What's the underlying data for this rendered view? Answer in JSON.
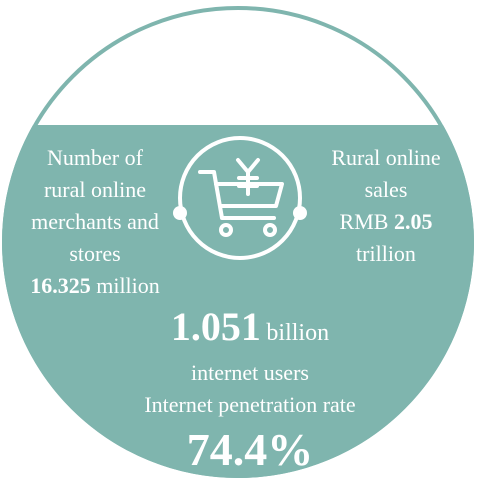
{
  "left": {
    "lines": [
      "Number of",
      "rural online",
      "merchants and",
      "stores"
    ],
    "value": "16.325",
    "unit": "million"
  },
  "right": {
    "lines": [
      "Rural online",
      "sales"
    ],
    "prefix": "RMB",
    "value": "2.05",
    "unit": "trillion"
  },
  "center": {
    "value": "1.051",
    "unit": "billion",
    "lines": [
      "internet users",
      "Internet penetration rate"
    ],
    "rate": "74.4%"
  }
}
